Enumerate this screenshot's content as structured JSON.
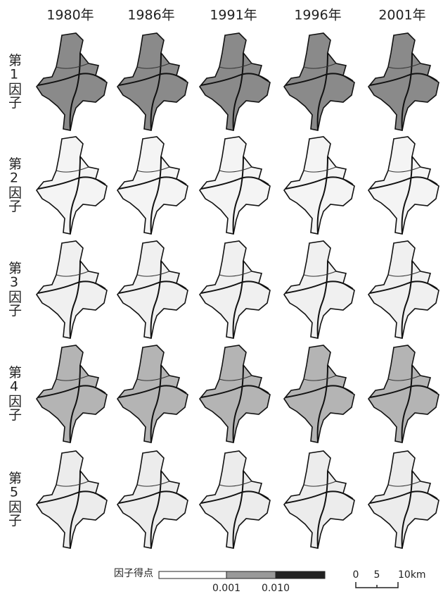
{
  "columns": [
    "1980年",
    "1986年",
    "1991年",
    "1996年",
    "2001年"
  ],
  "rows": [
    "第1因子",
    "第2因子",
    "第3因子",
    "第4因子",
    "第5因子"
  ],
  "legend": {
    "title": "因子得点",
    "breaks": [
      "0.001",
      "0.010"
    ]
  },
  "scale": {
    "labels": [
      "0",
      "5",
      "10km"
    ]
  }
}
